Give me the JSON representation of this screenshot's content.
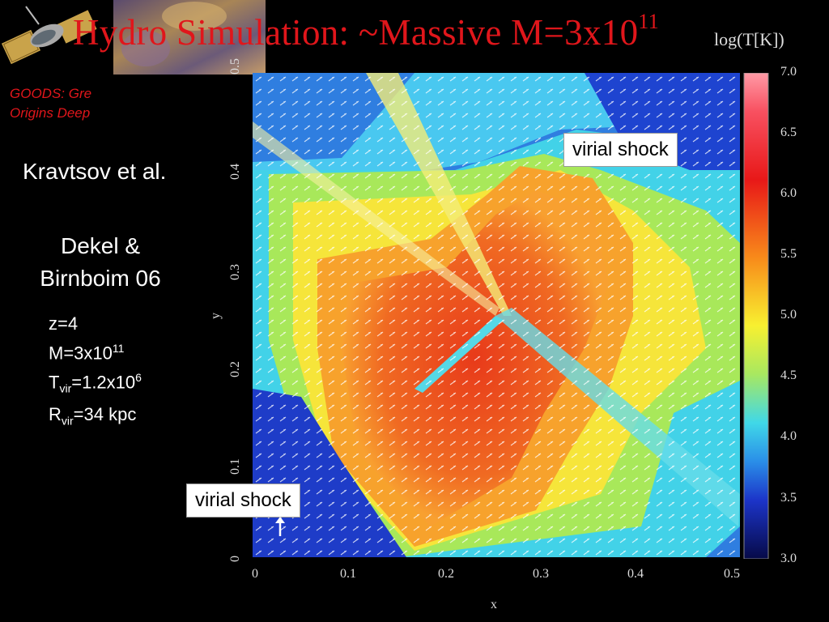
{
  "title": {
    "text": "Hydro Simulation: ~Massive M=3x10",
    "sup": "11"
  },
  "goods": {
    "line1": "GOODS: Gre",
    "line2": "Origins Deep"
  },
  "authors": {
    "kravtsov": "Kravtsov et al.",
    "dekel_line1": "Dekel &",
    "dekel_line2": "Birnboim 06"
  },
  "params": {
    "z": "z=4",
    "m_base": "M=3x10",
    "m_exp": "11",
    "t_prefix": "T",
    "t_sub": "vir",
    "t_rest": "=1.2x10",
    "t_exp": "6",
    "r_prefix": "R",
    "r_sub": "vir",
    "r_rest": "=34 kpc"
  },
  "colorbar": {
    "label": "log(T[K])",
    "ticks": [
      "7.0",
      "6.5",
      "6.0",
      "5.5",
      "5.0",
      "4.5",
      "4.0",
      "3.5",
      "3.0"
    ]
  },
  "axes": {
    "xlabel": "x",
    "ylabel": "y",
    "xticks": [
      "0",
      "0.1",
      "0.2",
      "0.3",
      "0.4",
      "0.5"
    ],
    "yticks": [
      "0",
      "0.1",
      "0.2",
      "0.3",
      "0.4",
      "0.5"
    ]
  },
  "callouts": {
    "top": "virial shock",
    "bottom": "virial shock"
  }
}
